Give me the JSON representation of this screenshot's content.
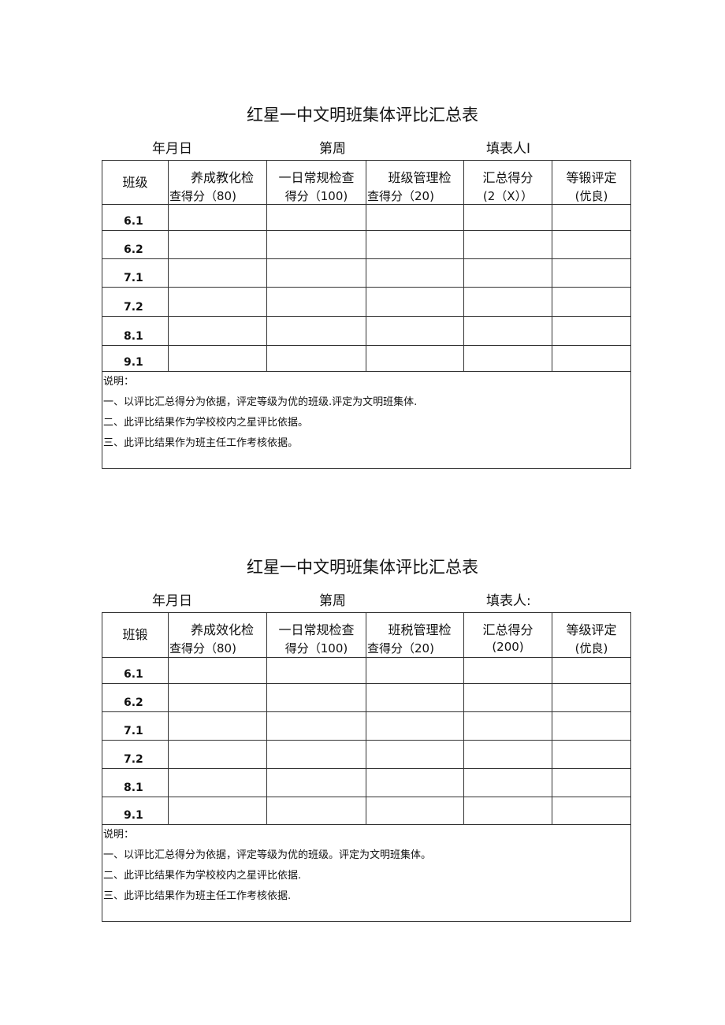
{
  "docs": [
    {
      "title": "红星一中文明班集体评比汇总表",
      "date": "年月日",
      "week": "第周",
      "filler": "填表人I",
      "headers": [
        [
          "班级",
          ""
        ],
        [
          "养成教化检",
          "查得分（80)"
        ],
        [
          "一日常规检查",
          "得分（100)"
        ],
        [
          "班级管理检",
          "查得分（20)"
        ],
        [
          "汇总得分",
          "(2（X））"
        ],
        [
          "等锻评定",
          "(优良)"
        ]
      ],
      "rows": [
        "6.1",
        "6.2",
        "7.1",
        "7.2",
        "8.1",
        "9.1"
      ],
      "notes": [
        "说明：",
        "一、以评比汇总得分为依据，评定等级为优的班级.评定为文明班集体.",
        "二、此评比结果作为学校校内之星评比依据。",
        "三、此评比结果作为班主任工作考核依据。"
      ]
    },
    {
      "title": "红星一中文明班集体评比汇总表",
      "date": "年月日",
      "week": "第周",
      "filler": "填表人:",
      "headers": [
        [
          "班锻",
          ""
        ],
        [
          "养成效化检",
          "查得分（80)"
        ],
        [
          "一日常规检查",
          "得分（100)"
        ],
        [
          "班税管理检",
          "查得分（20)"
        ],
        [
          "汇总得分",
          "(200)"
        ],
        [
          "等级评定",
          "(优良)"
        ]
      ],
      "rows": [
        "6.1",
        "6.2",
        "7.1",
        "7.2",
        "8.1",
        "9.1"
      ],
      "notes": [
        "说明：",
        "一、以评比汇总得分为依据，评定等级为优的班级。评定为文明班集体。",
        "二、此评比结果作为学校校内之星评比依据.",
        "三、此评比结果作为班主任工作考核依据."
      ]
    }
  ]
}
